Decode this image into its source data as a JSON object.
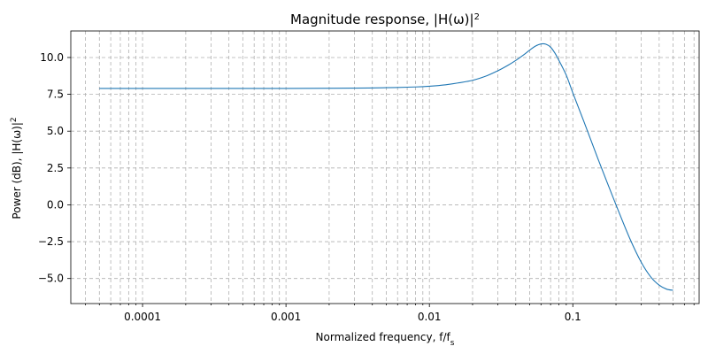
{
  "chart_data": {
    "type": "line",
    "title_prefix": "Magnitude response, |H(ω)|",
    "title_sup": "2",
    "xlabel_prefix": "Normalized frequency, f/f",
    "xlabel_sub": "s",
    "ylabel_prefix": "Power (dB), |H(ω)|",
    "ylabel_sup": "2",
    "x_scale": "log",
    "xlim": [
      3.16e-05,
      0.76
    ],
    "ylim": [
      -6.7,
      11.8
    ],
    "x_ticks": [
      0.0001,
      0.001,
      0.01,
      0.1
    ],
    "x_tick_labels": [
      "0.0001",
      "0.001",
      "0.01",
      "0.1"
    ],
    "y_ticks": [
      -5.0,
      -2.5,
      0.0,
      2.5,
      5.0,
      7.5,
      10.0
    ],
    "y_tick_labels": [
      "−5.0",
      "−2.5",
      "0.0",
      "2.5",
      "5.0",
      "7.5",
      "10.0"
    ],
    "grid": true,
    "line_color": "#1f77b4",
    "grid_color": "#b0b0b0",
    "series": [
      {
        "x": [
          5e-05,
          0.0001,
          0.001,
          0.003,
          0.005,
          0.008,
          0.01,
          0.013,
          0.016,
          0.02,
          0.025,
          0.03,
          0.035,
          0.04,
          0.045,
          0.05,
          0.055,
          0.06,
          0.065,
          0.07,
          0.075,
          0.08,
          0.09,
          0.1,
          0.12,
          0.15,
          0.2,
          0.25,
          0.3,
          0.35,
          0.4,
          0.45,
          0.5
        ],
        "y": [
          7.9,
          7.9,
          7.9,
          7.92,
          7.95,
          8.0,
          8.05,
          8.15,
          8.28,
          8.45,
          8.75,
          9.1,
          9.45,
          9.8,
          10.15,
          10.5,
          10.78,
          10.92,
          10.9,
          10.7,
          10.3,
          9.8,
          8.8,
          7.6,
          5.6,
          3.1,
          0.0,
          -2.3,
          -3.9,
          -4.9,
          -5.45,
          -5.72,
          -5.8
        ]
      }
    ]
  }
}
